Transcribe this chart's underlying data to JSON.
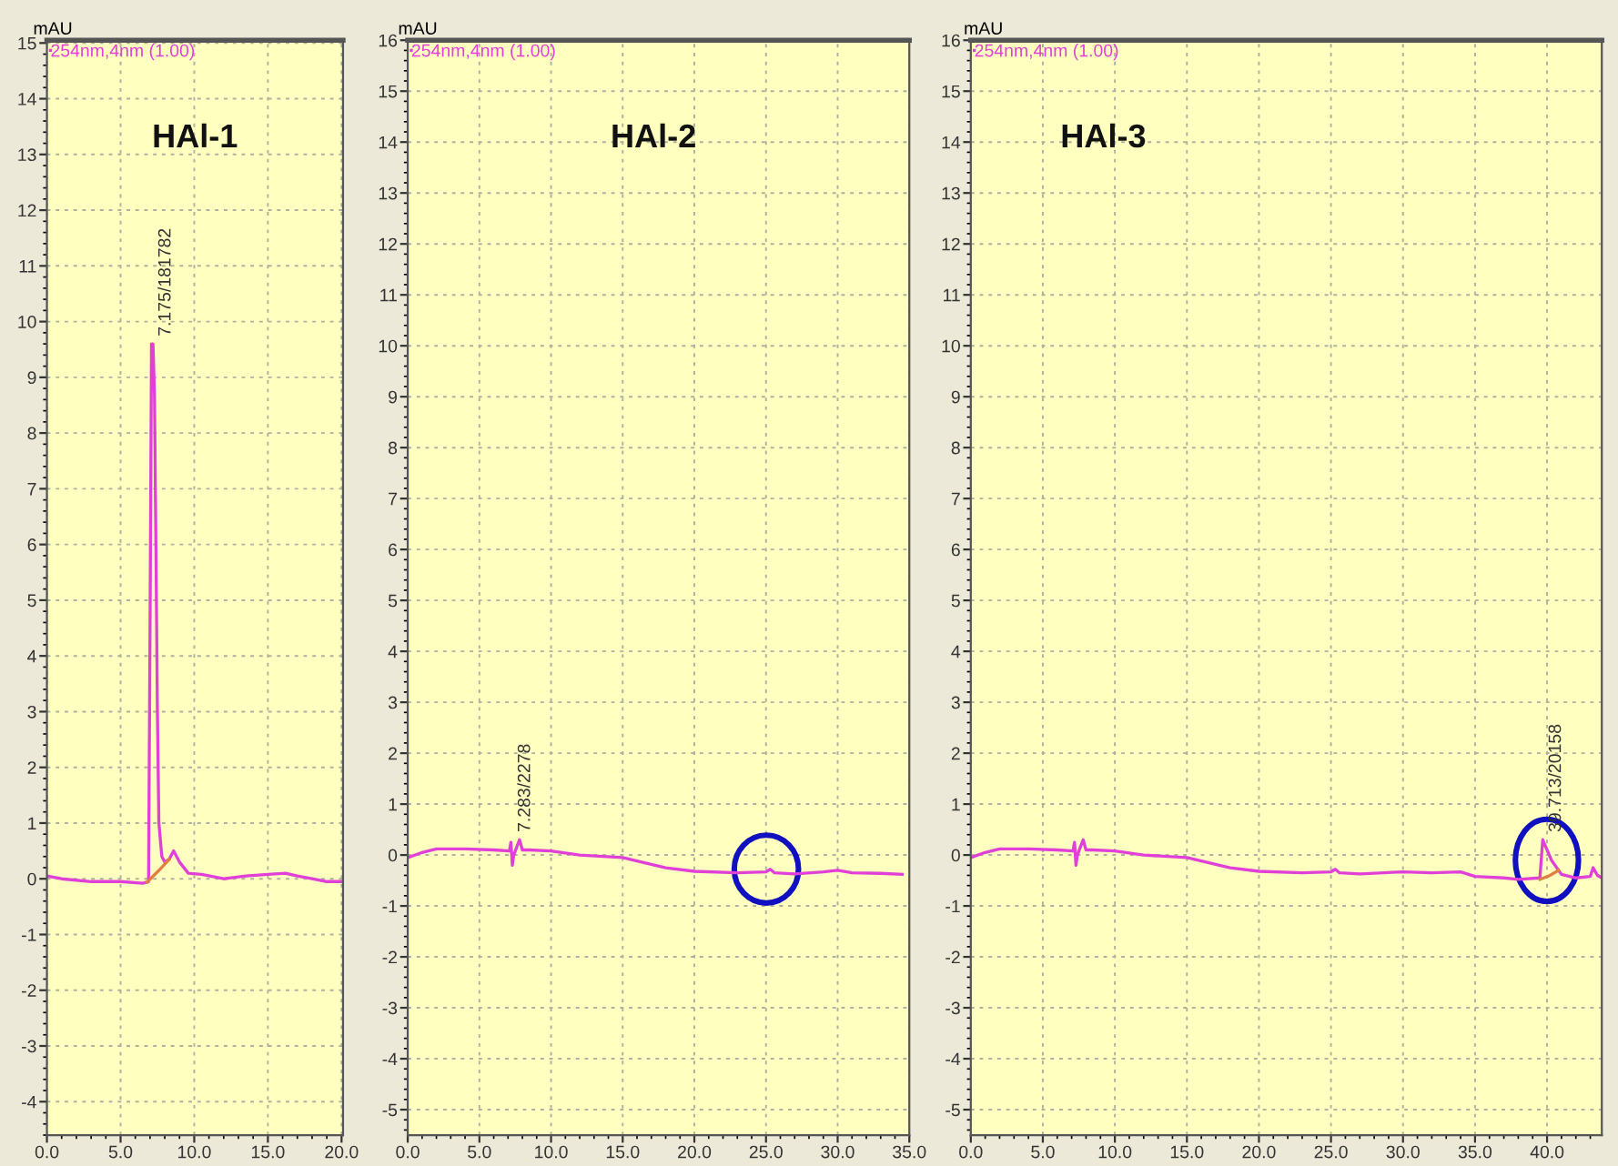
{
  "chart_data": [
    {
      "type": "line",
      "title": "HAl-1",
      "ylabel": "mAU",
      "legend": "top left",
      "grid": true,
      "line_style": "solid",
      "xlim": [
        0,
        20.1
      ],
      "ylim": [
        -4.6,
        15.05
      ],
      "xticks": [
        {
          "value": 0,
          "label": "0.0"
        },
        {
          "value": 5,
          "label": "5.0"
        },
        {
          "value": 10,
          "label": "10.0"
        },
        {
          "value": 15,
          "label": "15.0"
        },
        {
          "value": 20,
          "label": "20.0"
        }
      ],
      "yticks": [
        -4,
        -3,
        -2,
        -1,
        0,
        1,
        2,
        3,
        4,
        5,
        6,
        7,
        8,
        9,
        10,
        11,
        12,
        13,
        14,
        15
      ],
      "series": [
        {
          "name": "254nm,4nm (1.00)",
          "color": "#e040d8",
          "x": [
            0,
            1,
            3,
            5,
            6.5,
            6.9,
            7.0,
            7.1,
            7.2,
            7.3,
            7.4,
            7.5,
            7.6,
            7.8,
            8.0,
            8.3,
            8.6,
            9.0,
            9.6,
            10.5,
            12,
            13.5,
            15,
            16.2,
            17,
            18,
            19,
            20.1
          ],
          "values": [
            0.05,
            0.0,
            -0.05,
            -0.05,
            -0.08,
            -0.05,
            4.5,
            9.6,
            9.6,
            8.7,
            6.0,
            3.0,
            1.0,
            0.4,
            0.3,
            0.35,
            0.5,
            0.3,
            0.1,
            0.08,
            0.0,
            0.05,
            0.08,
            0.1,
            0.05,
            0.0,
            -0.05,
            -0.05
          ]
        },
        {
          "color": "#e08040",
          "x": [
            6.8,
            7.6,
            8.3
          ],
          "values": [
            -0.06,
            0.15,
            0.35
          ]
        }
      ],
      "annotations": [
        {
          "text": "7.175/181782",
          "x": 7.175,
          "y": 9.6
        }
      ]
    },
    {
      "type": "line",
      "title": "HAl-2",
      "ylabel": "mAU",
      "legend": "top left",
      "grid": true,
      "line_style": "solid",
      "xlim": [
        0,
        35
      ],
      "ylim": [
        -5.5,
        16
      ],
      "xticks": [
        {
          "value": 0,
          "label": "0.0"
        },
        {
          "value": 5,
          "label": "5.0"
        },
        {
          "value": 10,
          "label": "10.0"
        },
        {
          "value": 15,
          "label": "15.0"
        },
        {
          "value": 20,
          "label": "20.0"
        },
        {
          "value": 25,
          "label": "25.0"
        },
        {
          "value": 30,
          "label": "30.0"
        },
        {
          "value": 35,
          "label": "35.0"
        }
      ],
      "yticks": [
        -5,
        -4,
        -3,
        -2,
        -1,
        0,
        1,
        2,
        3,
        4,
        5,
        6,
        7,
        8,
        9,
        10,
        11,
        12,
        13,
        14,
        15,
        16
      ],
      "series": [
        {
          "name": "254nm,4nm (1.00)",
          "color": "#e040d8",
          "x": [
            0,
            1,
            2,
            4,
            6,
            7.1,
            7.2,
            7.3,
            7.4,
            7.6,
            7.8,
            8.0,
            8.5,
            10,
            12,
            15,
            18,
            20,
            23,
            25,
            25.3,
            25.6,
            27,
            29,
            30,
            31,
            33,
            34.5
          ],
          "values": [
            -0.05,
            0.05,
            0.12,
            0.12,
            0.1,
            0.08,
            0.25,
            -0.2,
            0.0,
            0.15,
            0.3,
            0.1,
            0.1,
            0.08,
            0.0,
            -0.05,
            -0.25,
            -0.32,
            -0.35,
            -0.33,
            -0.28,
            -0.35,
            -0.37,
            -0.33,
            -0.3,
            -0.35,
            -0.36,
            -0.38
          ]
        }
      ],
      "annotations": [
        {
          "text": "7.283/2278",
          "x": 7.283,
          "y": 0.3
        }
      ]
    },
    {
      "type": "line",
      "title": "HAl-3",
      "ylabel": "mAU",
      "legend": "top left",
      "grid": true,
      "line_style": "solid",
      "xlim": [
        0,
        43.8
      ],
      "ylim": [
        -5.5,
        16
      ],
      "xticks": [
        {
          "value": 0,
          "label": "0.0"
        },
        {
          "value": 5,
          "label": "5.0"
        },
        {
          "value": 10,
          "label": "10.0"
        },
        {
          "value": 15,
          "label": "15.0"
        },
        {
          "value": 20,
          "label": "20.0"
        },
        {
          "value": 25,
          "label": "25.0"
        },
        {
          "value": 30,
          "label": "30.0"
        },
        {
          "value": 35,
          "label": "35.0"
        },
        {
          "value": 40,
          "label": "40.0"
        }
      ],
      "yticks": [
        -5,
        -4,
        -3,
        -2,
        -1,
        0,
        1,
        2,
        3,
        4,
        5,
        6,
        7,
        8,
        9,
        10,
        11,
        12,
        13,
        14,
        15,
        16
      ],
      "series": [
        {
          "name": "254nm,4nm (1.00)",
          "color": "#e040d8",
          "x": [
            0,
            1,
            2,
            4,
            6,
            7.1,
            7.2,
            7.3,
            7.4,
            7.6,
            7.8,
            8.0,
            8.5,
            10,
            12,
            15,
            18,
            20,
            23,
            25,
            25.3,
            25.6,
            27,
            30,
            32,
            34,
            35,
            37,
            38,
            39.5,
            39.7,
            40.0,
            40.3,
            41,
            42,
            43,
            43.2,
            43.5,
            43.8
          ],
          "values": [
            -0.05,
            0.05,
            0.12,
            0.12,
            0.1,
            0.08,
            0.25,
            -0.2,
            0.0,
            0.15,
            0.3,
            0.1,
            0.1,
            0.08,
            0.0,
            -0.05,
            -0.25,
            -0.32,
            -0.35,
            -0.33,
            -0.28,
            -0.35,
            -0.37,
            -0.33,
            -0.35,
            -0.33,
            -0.42,
            -0.45,
            -0.48,
            -0.45,
            0.3,
            0.1,
            -0.1,
            -0.38,
            -0.45,
            -0.42,
            -0.25,
            -0.4,
            -0.45
          ]
        },
        {
          "color": "#e08040",
          "x": [
            39.5,
            40.2,
            40.8
          ],
          "values": [
            -0.48,
            -0.4,
            -0.3
          ]
        }
      ],
      "annotations": [
        {
          "text": "39.713/20158",
          "x": 39.713,
          "y": 0.3
        }
      ]
    }
  ]
}
